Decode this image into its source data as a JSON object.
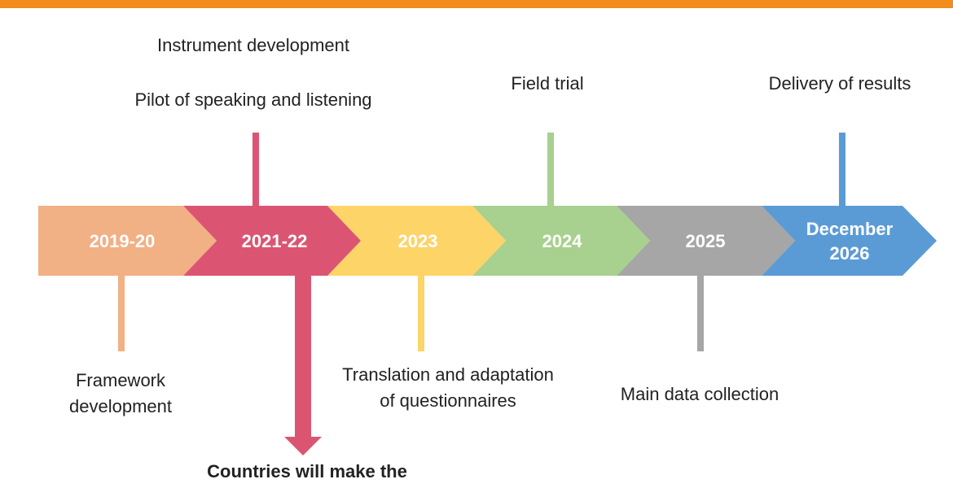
{
  "colors": {
    "top_rule": "#f28c1c",
    "segments": [
      "#f2b085",
      "#db5572",
      "#fdd468",
      "#a8d08e",
      "#a6a6a6",
      "#5b9bd5"
    ]
  },
  "timeline": {
    "segments": [
      {
        "label": "2019-20"
      },
      {
        "label": "2021-22"
      },
      {
        "label": "2023"
      },
      {
        "label": "2024"
      },
      {
        "label": "2025"
      },
      {
        "label": "December",
        "label2": "2026"
      }
    ]
  },
  "milestones": {
    "instrument_development": "Instrument development",
    "pilot": "Pilot of speaking and listening",
    "field_trial": "Field trial",
    "delivery": "Delivery of results",
    "framework_line1": "Framework",
    "framework_line2": "development",
    "translation_line1": "Translation and adaptation",
    "translation_line2": "of questionnaires",
    "main_data": "Main data collection",
    "countries": "Countries will make the"
  }
}
